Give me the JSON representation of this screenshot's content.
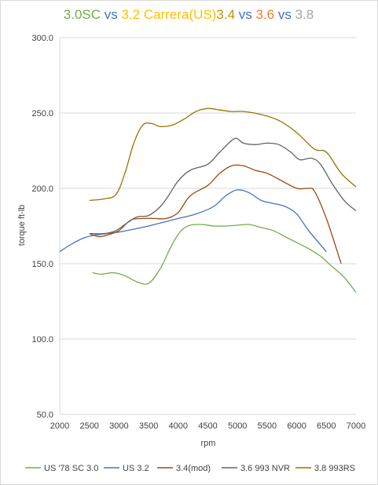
{
  "chart_data": {
    "type": "line",
    "title_parts": [
      {
        "text": "3.0SC",
        "color": "#70ad47"
      },
      {
        "text": " vs ",
        "color": "#4472c4"
      },
      {
        "text": "3.2 Carrera(US)",
        "color": "#ffc000"
      },
      {
        "text": "3.4",
        "color": "#c59000"
      },
      {
        "text": " vs ",
        "color": "#4472c4"
      },
      {
        "text": "3.6",
        "color": "#ed7d31"
      },
      {
        "text": " vs ",
        "color": "#4472c4"
      },
      {
        "text": "3.8",
        "color": "#a5a5a5"
      }
    ],
    "xlabel": "rpm",
    "ylabel": "torque ft-lb",
    "xlim": [
      2000,
      7000
    ],
    "ylim": [
      50,
      300
    ],
    "x_ticks": [
      2000,
      2500,
      3000,
      3500,
      4000,
      4500,
      5000,
      5500,
      6000,
      6500,
      7000
    ],
    "y_ticks": [
      "50.0",
      "100.0",
      "150.0",
      "200.0",
      "250.0",
      "300.0"
    ],
    "y_tick_values": [
      50,
      100,
      150,
      200,
      250,
      300
    ],
    "grid": "horizontal",
    "legend_position": "bottom",
    "series": [
      {
        "name": "US '78 SC 3.0",
        "color": "#70ad47",
        "points": [
          [
            2550,
            144
          ],
          [
            2700,
            143
          ],
          [
            2900,
            144
          ],
          [
            3100,
            142
          ],
          [
            3300,
            138
          ],
          [
            3500,
            137
          ],
          [
            3700,
            147
          ],
          [
            3900,
            163
          ],
          [
            4050,
            172
          ],
          [
            4200,
            175.5
          ],
          [
            4400,
            176
          ],
          [
            4600,
            175
          ],
          [
            4800,
            175
          ],
          [
            5000,
            175.5
          ],
          [
            5200,
            176
          ],
          [
            5400,
            174
          ],
          [
            5600,
            172
          ],
          [
            5800,
            168
          ],
          [
            6000,
            164
          ],
          [
            6200,
            160
          ],
          [
            6400,
            155
          ],
          [
            6600,
            148
          ],
          [
            6800,
            141
          ],
          [
            7000,
            131
          ]
        ]
      },
      {
        "name": "US 3.2",
        "color": "#4472c4",
        "points": [
          [
            2000,
            158
          ],
          [
            2200,
            163
          ],
          [
            2400,
            167
          ],
          [
            2600,
            169
          ],
          [
            2800,
            170
          ],
          [
            3000,
            171
          ],
          [
            3200,
            172.5
          ],
          [
            3500,
            175
          ],
          [
            3800,
            178
          ],
          [
            4000,
            180
          ],
          [
            4300,
            183
          ],
          [
            4600,
            188
          ],
          [
            4800,
            195
          ],
          [
            5000,
            199
          ],
          [
            5200,
            197
          ],
          [
            5400,
            192
          ],
          [
            5600,
            190
          ],
          [
            5800,
            188
          ],
          [
            6000,
            183
          ],
          [
            6200,
            172
          ],
          [
            6500,
            158
          ]
        ]
      },
      {
        "name": "3.4(mod)",
        "color": "#9e480e",
        "points": [
          [
            2500,
            170
          ],
          [
            2650,
            168
          ],
          [
            2800,
            169
          ],
          [
            3000,
            172
          ],
          [
            3200,
            179
          ],
          [
            3400,
            180
          ],
          [
            3600,
            180
          ],
          [
            3800,
            180
          ],
          [
            4000,
            184
          ],
          [
            4200,
            195
          ],
          [
            4500,
            202
          ],
          [
            4700,
            210
          ],
          [
            4900,
            215
          ],
          [
            5100,
            215
          ],
          [
            5300,
            212
          ],
          [
            5500,
            210
          ],
          [
            5700,
            206
          ],
          [
            6000,
            200
          ],
          [
            6200,
            200
          ],
          [
            6300,
            198
          ],
          [
            6500,
            180
          ],
          [
            6750,
            150
          ]
        ]
      },
      {
        "name": "3.6 993 NVR",
        "color": "#636363",
        "points": [
          [
            2500,
            170
          ],
          [
            2750,
            170
          ],
          [
            2950,
            172
          ],
          [
            3100,
            176
          ],
          [
            3300,
            181
          ],
          [
            3500,
            182
          ],
          [
            3700,
            188
          ],
          [
            3850,
            196
          ],
          [
            4000,
            205
          ],
          [
            4200,
            212
          ],
          [
            4500,
            216
          ],
          [
            4700,
            224
          ],
          [
            4950,
            233
          ],
          [
            5100,
            230
          ],
          [
            5300,
            229
          ],
          [
            5500,
            230
          ],
          [
            5700,
            229
          ],
          [
            5900,
            224
          ],
          [
            6050,
            219
          ],
          [
            6250,
            220
          ],
          [
            6400,
            216
          ],
          [
            6600,
            203
          ],
          [
            6800,
            192
          ],
          [
            7000,
            185
          ]
        ]
      },
      {
        "name": "3.8 993RS",
        "color": "#997300",
        "points": [
          [
            2500,
            192
          ],
          [
            2750,
            193
          ],
          [
            2950,
            196
          ],
          [
            3100,
            210
          ],
          [
            3250,
            230
          ],
          [
            3400,
            242
          ],
          [
            3550,
            243
          ],
          [
            3700,
            241
          ],
          [
            3900,
            242
          ],
          [
            4100,
            246
          ],
          [
            4300,
            251
          ],
          [
            4500,
            253
          ],
          [
            4700,
            252
          ],
          [
            4900,
            251
          ],
          [
            5100,
            251
          ],
          [
            5400,
            249
          ],
          [
            5700,
            245
          ],
          [
            6000,
            237
          ],
          [
            6300,
            226
          ],
          [
            6500,
            224
          ],
          [
            6750,
            210
          ],
          [
            7000,
            201
          ]
        ]
      }
    ]
  }
}
